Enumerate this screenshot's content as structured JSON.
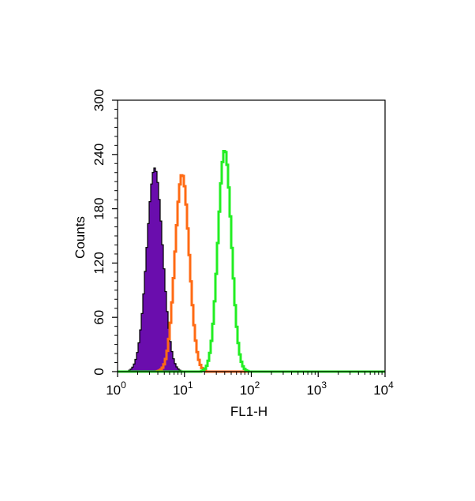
{
  "chart_data": {
    "type": "histogram",
    "xlabel": "FL1-H",
    "ylabel": "Counts",
    "x_scale": "log",
    "xlim": [
      1,
      10000
    ],
    "ylim": [
      0,
      300
    ],
    "x_ticks": [
      {
        "base": "10",
        "exp": "0",
        "value": 1
      },
      {
        "base": "10",
        "exp": "1",
        "value": 10
      },
      {
        "base": "10",
        "exp": "2",
        "value": 100
      },
      {
        "base": "10",
        "exp": "3",
        "value": 1000
      },
      {
        "base": "10",
        "exp": "4",
        "value": 10000
      }
    ],
    "y_ticks": [
      "0",
      "60",
      "120",
      "180",
      "240",
      "300"
    ],
    "grid": false,
    "series": [
      {
        "color": "#6a0dad",
        "fill": true,
        "peak_x": 3.5,
        "peak_y": 225,
        "spread_log": 0.12
      },
      {
        "color": "#ff6a13",
        "fill": false,
        "peak_x": 9.0,
        "peak_y": 218,
        "spread_log": 0.105
      },
      {
        "color": "#22ee22",
        "fill": false,
        "peak_x": 39.0,
        "peak_y": 245,
        "spread_log": 0.1
      }
    ]
  }
}
